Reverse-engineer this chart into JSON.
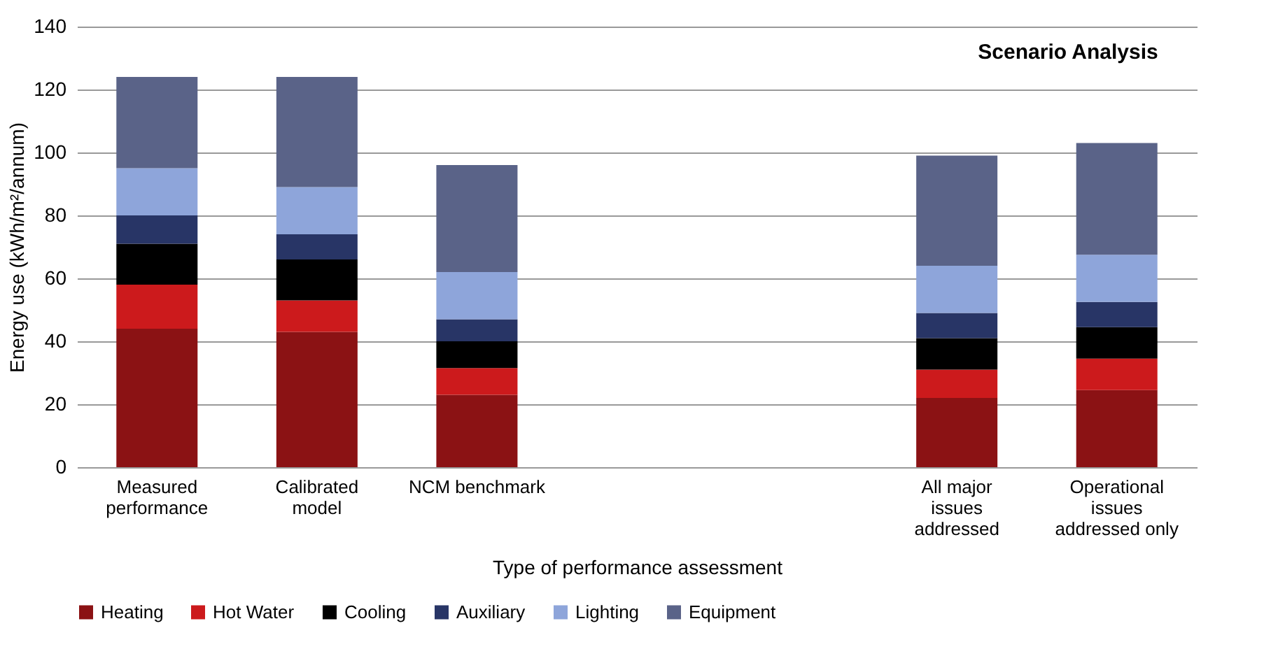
{
  "chart_data": {
    "type": "bar",
    "stacked": true,
    "xlabel": "Type of performance  assessment",
    "ylabel": "Energy use (kWh/m²/annum)",
    "categories": [
      "Measured performance",
      "Calibrated model",
      "NCM benchmark",
      null,
      null,
      "All major issues addressed",
      "Operational issues addressed only"
    ],
    "series": [
      {
        "name": "Heating",
        "color": "#8b1214",
        "values": [
          44,
          43,
          23,
          null,
          null,
          22,
          24.5
        ]
      },
      {
        "name": "Hot Water",
        "color": "#cc1a1c",
        "values": [
          14,
          10,
          8.5,
          null,
          null,
          9,
          10
        ]
      },
      {
        "name": "Cooling",
        "color": "#000000",
        "values": [
          13,
          13,
          8.5,
          null,
          null,
          10,
          10
        ]
      },
      {
        "name": "Auxiliary",
        "color": "#283566",
        "values": [
          9,
          8,
          7,
          null,
          null,
          8,
          8
        ]
      },
      {
        "name": "Lighting",
        "color": "#8ea5da",
        "values": [
          15,
          15,
          15,
          null,
          null,
          15,
          15
        ]
      },
      {
        "name": "Equipment",
        "color": "#5a6388",
        "values": [
          29,
          35,
          34,
          null,
          null,
          35,
          35.5
        ]
      }
    ],
    "ylim": [
      0,
      140
    ],
    "yticks": [
      0,
      20,
      40,
      60,
      80,
      100,
      120,
      140
    ],
    "grid": "y",
    "legend": "bottom",
    "annotations": [
      "Scenario Analysis"
    ]
  }
}
